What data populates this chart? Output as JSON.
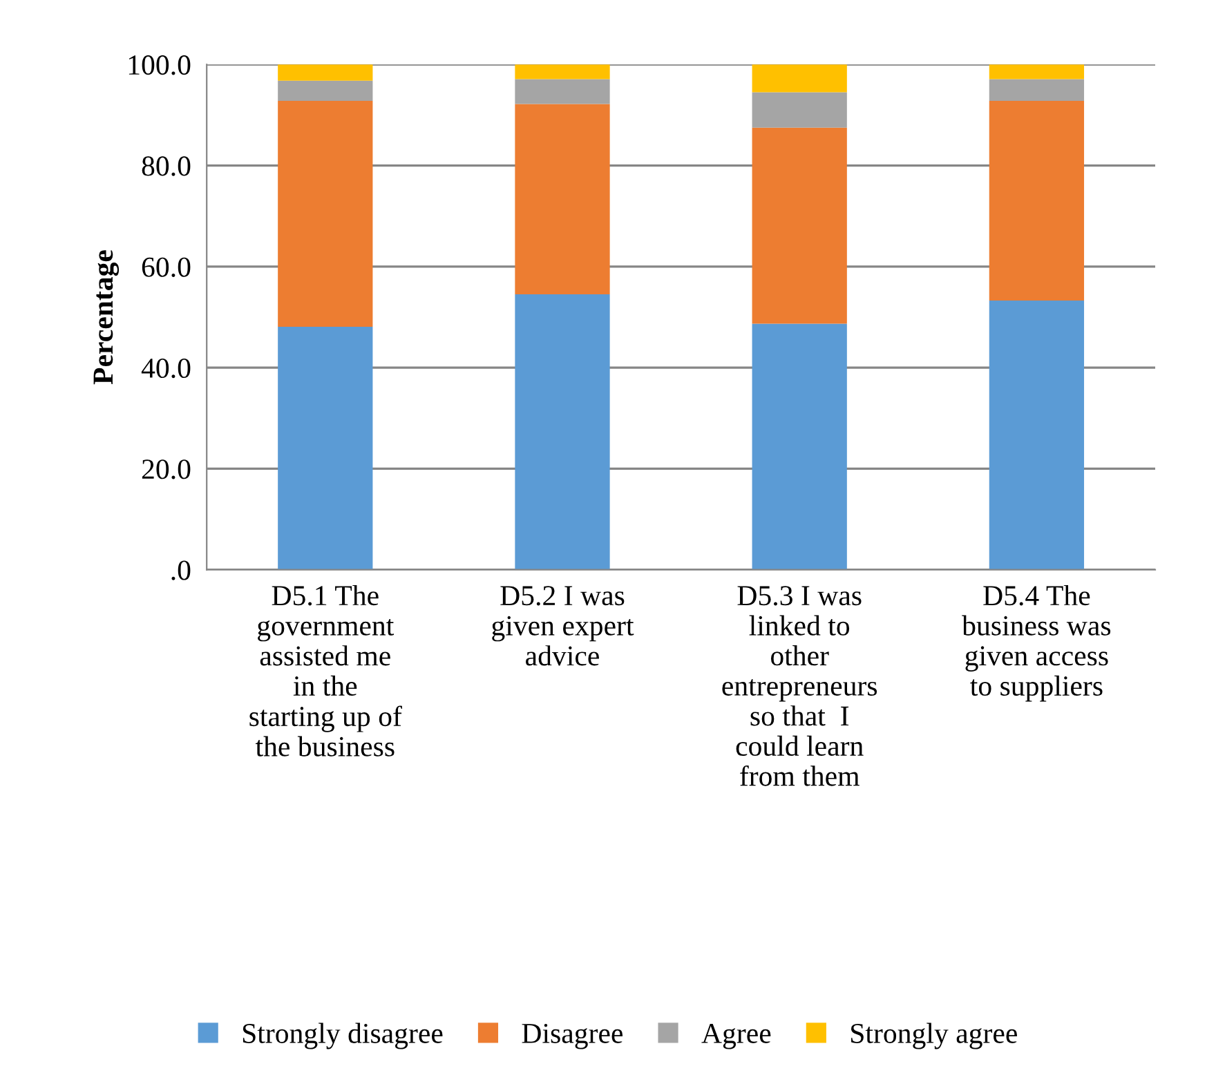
{
  "chart_data": {
    "type": "bar",
    "stacked": true,
    "ylabel": "Percentage",
    "categories": [
      "D5.1 The\ngovernment\nassisted me\nin the\nstarting up of\nthe business",
      "D5.2 I was\ngiven expert\nadvice",
      "D5.3 I was\nlinked to\nother\nentrepreneurs\nso that  I\ncould learn\nfrom them",
      "D5.4 The\nbusiness was\ngiven access\nto suppliers"
    ],
    "series": [
      {
        "name": "Strongly disagree",
        "color": "#5b9bd5",
        "values": [
          48.1,
          54.5,
          48.7,
          53.3
        ]
      },
      {
        "name": "Disagree",
        "color": "#ed7d31",
        "values": [
          44.7,
          37.7,
          38.8,
          39.5
        ]
      },
      {
        "name": "Agree",
        "color": "#a5a5a5",
        "values": [
          4.0,
          4.9,
          7.0,
          4.3
        ]
      },
      {
        "name": "Strongly agree",
        "color": "#ffc000",
        "values": [
          3.2,
          2.9,
          5.5,
          2.9
        ]
      }
    ],
    "ylim": [
      0,
      100
    ],
    "yticks": [
      {
        "value": 0,
        "label": ".0"
      },
      {
        "value": 20,
        "label": "20.0"
      },
      {
        "value": 40,
        "label": "40.0"
      },
      {
        "value": 60,
        "label": "60.0"
      },
      {
        "value": 80,
        "label": "80.0"
      },
      {
        "value": 100,
        "label": "100.0"
      }
    ],
    "grid": "y",
    "legend": "bottom"
  }
}
